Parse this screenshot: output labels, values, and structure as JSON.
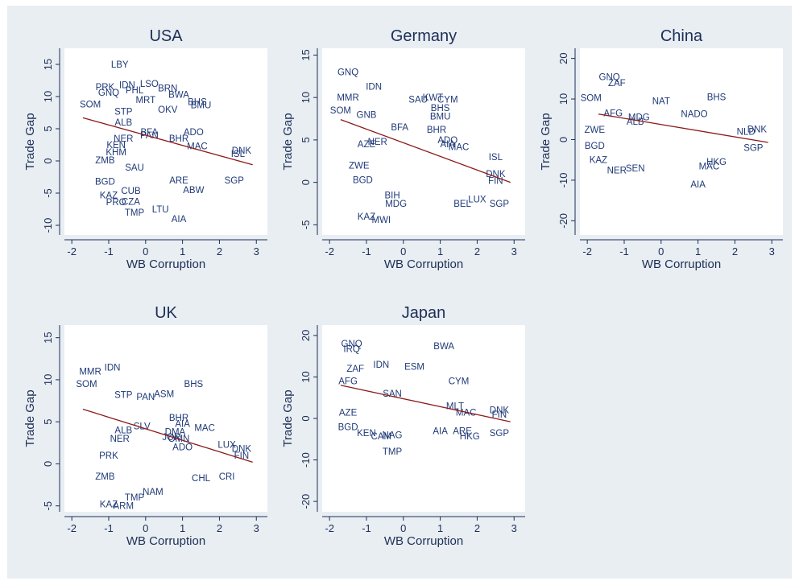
{
  "chart_data": [
    {
      "type": "scatter",
      "title": "USA",
      "xlabel": "WB Corruption",
      "ylabel": "Trade Gap",
      "xlim": [
        -2.2,
        3.3
      ],
      "ylim": [
        -11.5,
        17.5
      ],
      "xticks": [
        "-2",
        "-1",
        "0",
        "1",
        "2",
        "3"
      ],
      "xtick_values": [
        -2,
        -1,
        0,
        1,
        2,
        3
      ],
      "yticks": [
        "-10",
        "-5",
        "0",
        "5",
        "10",
        "15"
      ],
      "ytick_values": [
        -10,
        -5,
        0,
        5,
        10,
        15
      ],
      "fit_line": {
        "x": [
          -1.7,
          2.9
        ],
        "y": [
          6.7,
          -0.6
        ]
      },
      "points": [
        {
          "label": "LBY",
          "x": -0.7,
          "y": 15.0
        },
        {
          "label": "IDN",
          "x": -0.5,
          "y": 11.8
        },
        {
          "label": "LSO",
          "x": 0.1,
          "y": 12.0
        },
        {
          "label": "PRK",
          "x": -1.1,
          "y": 11.5
        },
        {
          "label": "BRN",
          "x": 0.6,
          "y": 11.3
        },
        {
          "label": "GNQ",
          "x": -1.0,
          "y": 10.6
        },
        {
          "label": "PHL",
          "x": -0.3,
          "y": 11.0
        },
        {
          "label": "BWA",
          "x": 0.9,
          "y": 10.3
        },
        {
          "label": "SOM",
          "x": -1.5,
          "y": 8.8
        },
        {
          "label": "STP",
          "x": -0.6,
          "y": 7.7
        },
        {
          "label": "MRT",
          "x": 0.0,
          "y": 9.5
        },
        {
          "label": "BHS",
          "x": 1.4,
          "y": 9.2
        },
        {
          "label": "BMU",
          "x": 1.5,
          "y": 8.7
        },
        {
          "label": "OKV",
          "x": 0.6,
          "y": 8.0
        },
        {
          "label": "ALB",
          "x": -0.6,
          "y": 6.0
        },
        {
          "label": "BFA",
          "x": 0.1,
          "y": 4.5
        },
        {
          "label": "PAN",
          "x": 0.1,
          "y": 4.0
        },
        {
          "label": "ADO",
          "x": 1.3,
          "y": 4.5
        },
        {
          "label": "BHR",
          "x": 0.9,
          "y": 3.5
        },
        {
          "label": "MAC",
          "x": 1.4,
          "y": 2.3
        },
        {
          "label": "NER",
          "x": -0.6,
          "y": 3.5
        },
        {
          "label": "KEN",
          "x": -0.8,
          "y": 2.5
        },
        {
          "label": "KHM",
          "x": -0.8,
          "y": 1.4
        },
        {
          "label": "DNK",
          "x": 2.6,
          "y": 1.6
        },
        {
          "label": "ISL",
          "x": 2.5,
          "y": 1.1
        },
        {
          "label": "ZMB",
          "x": -1.1,
          "y": 0.1
        },
        {
          "label": "BGD",
          "x": -1.1,
          "y": -3.2
        },
        {
          "label": "SAU",
          "x": -0.3,
          "y": -1.0
        },
        {
          "label": "ARE",
          "x": 0.9,
          "y": -3.0
        },
        {
          "label": "SGP",
          "x": 2.4,
          "y": -3.0
        },
        {
          "label": "ABW",
          "x": 1.3,
          "y": -4.5
        },
        {
          "label": "KAZ",
          "x": -1.0,
          "y": -5.3
        },
        {
          "label": "PRO",
          "x": -0.8,
          "y": -6.4
        },
        {
          "label": "CZA",
          "x": -0.4,
          "y": -6.3
        },
        {
          "label": "TMP",
          "x": -0.3,
          "y": -8.0
        },
        {
          "label": "LTU",
          "x": 0.4,
          "y": -7.5
        },
        {
          "label": "AIA",
          "x": 0.9,
          "y": -9.0
        },
        {
          "label": "CUB",
          "x": -0.4,
          "y": -4.6
        }
      ]
    },
    {
      "type": "scatter",
      "title": "Germany",
      "xlabel": "WB Corruption",
      "ylabel": "Trade Gap",
      "xlim": [
        -2.2,
        3.3
      ],
      "ylim": [
        -6.2,
        15.8
      ],
      "xticks": [
        "-2",
        "-1",
        "0",
        "1",
        "2",
        "3"
      ],
      "xtick_values": [
        -2,
        -1,
        0,
        1,
        2,
        3
      ],
      "yticks": [
        "-5",
        "0",
        "5",
        "10",
        "15"
      ],
      "ytick_values": [
        -5,
        0,
        5,
        10,
        15
      ],
      "fit_line": {
        "x": [
          -1.7,
          2.9
        ],
        "y": [
          7.4,
          0.0
        ]
      },
      "points": [
        {
          "label": "GNQ",
          "x": -1.5,
          "y": 13.0
        },
        {
          "label": "IDN",
          "x": -0.8,
          "y": 11.3
        },
        {
          "label": "MMR",
          "x": -1.5,
          "y": 10.0
        },
        {
          "label": "SOM",
          "x": -1.7,
          "y": 8.5
        },
        {
          "label": "SAU",
          "x": 0.4,
          "y": 9.8
        },
        {
          "label": "KWT",
          "x": 0.8,
          "y": 10.0
        },
        {
          "label": "CYM",
          "x": 1.2,
          "y": 9.8
        },
        {
          "label": "BHS",
          "x": 1.0,
          "y": 8.8
        },
        {
          "label": "BMU",
          "x": 1.0,
          "y": 7.8
        },
        {
          "label": "BFA",
          "x": -0.1,
          "y": 6.5
        },
        {
          "label": "BHR",
          "x": 0.9,
          "y": 6.2
        },
        {
          "label": "GNB",
          "x": -1.0,
          "y": 8.0
        },
        {
          "label": "ADO",
          "x": 1.2,
          "y": 5.0
        },
        {
          "label": "AIA",
          "x": 1.2,
          "y": 4.5
        },
        {
          "label": "MAC",
          "x": 1.5,
          "y": 4.2
        },
        {
          "label": "ISL",
          "x": 2.5,
          "y": 3.0
        },
        {
          "label": "NER",
          "x": -0.7,
          "y": 4.8
        },
        {
          "label": "AZE",
          "x": -1.0,
          "y": 4.5
        },
        {
          "label": "ZWE",
          "x": -1.2,
          "y": 2.0
        },
        {
          "label": "DNK",
          "x": 2.5,
          "y": 1.0
        },
        {
          "label": "FIN",
          "x": 2.5,
          "y": 0.2
        },
        {
          "label": "BEL",
          "x": 1.6,
          "y": -2.5
        },
        {
          "label": "LUX",
          "x": 2.0,
          "y": -2.0
        },
        {
          "label": "SGP",
          "x": 2.6,
          "y": -2.5
        },
        {
          "label": "MDG",
          "x": -0.2,
          "y": -2.5
        },
        {
          "label": "BGD",
          "x": -1.1,
          "y": 0.3
        },
        {
          "label": "KAZ",
          "x": -1.0,
          "y": -4.0
        },
        {
          "label": "MWI",
          "x": -0.6,
          "y": -4.4
        },
        {
          "label": "BIH",
          "x": -0.3,
          "y": -1.5
        }
      ]
    },
    {
      "type": "scatter",
      "title": "China",
      "xlabel": "WB Corruption",
      "ylabel": "Trade Gap",
      "xlim": [
        -2.2,
        3.3
      ],
      "ylim": [
        -23.5,
        22.5
      ],
      "xticks": [
        "-2",
        "-1",
        "0",
        "1",
        "2",
        "3"
      ],
      "xtick_values": [
        -2,
        -1,
        0,
        1,
        2,
        3
      ],
      "yticks": [
        "-20",
        "-10",
        "0",
        "10",
        "20"
      ],
      "ytick_values": [
        -20,
        -10,
        0,
        10,
        20
      ],
      "fit_line": {
        "x": [
          -1.7,
          2.9
        ],
        "y": [
          6.3,
          -0.7
        ]
      },
      "points": [
        {
          "label": "GNQ",
          "x": -1.4,
          "y": 15.5
        },
        {
          "label": "ZAF",
          "x": -1.2,
          "y": 14.0
        },
        {
          "label": "SOM",
          "x": -1.9,
          "y": 10.3
        },
        {
          "label": "NAT",
          "x": 0.0,
          "y": 9.5
        },
        {
          "label": "BHS",
          "x": 1.5,
          "y": 10.5
        },
        {
          "label": "AFG",
          "x": -1.3,
          "y": 6.5
        },
        {
          "label": "MDG",
          "x": -0.6,
          "y": 5.5
        },
        {
          "label": "NADO",
          "x": 0.9,
          "y": 6.3
        },
        {
          "label": "ALB",
          "x": -0.7,
          "y": 4.5
        },
        {
          "label": "ZWE",
          "x": -1.8,
          "y": 2.5
        },
        {
          "label": "DNK",
          "x": 2.6,
          "y": 2.6
        },
        {
          "label": "NLD",
          "x": 2.3,
          "y": 2.0
        },
        {
          "label": "SGP",
          "x": 2.5,
          "y": -2.0
        },
        {
          "label": "HKG",
          "x": 1.5,
          "y": -5.5
        },
        {
          "label": "MAC",
          "x": 1.3,
          "y": -6.5
        },
        {
          "label": "NER",
          "x": -1.2,
          "y": -7.5
        },
        {
          "label": "SEN",
          "x": -0.7,
          "y": -7.0
        },
        {
          "label": "AIA",
          "x": 1.0,
          "y": -11.0
        },
        {
          "label": "BGD",
          "x": -1.8,
          "y": -1.5
        },
        {
          "label": "KAZ",
          "x": -1.7,
          "y": -5.0
        }
      ]
    },
    {
      "type": "scatter",
      "title": "UK",
      "xlabel": "WB Corruption",
      "ylabel": "Trade Gap",
      "xlim": [
        -2.2,
        3.3
      ],
      "ylim": [
        -5.7,
        16.5
      ],
      "xticks": [
        "-2",
        "-1",
        "0",
        "1",
        "2",
        "3"
      ],
      "xtick_values": [
        -2,
        -1,
        0,
        1,
        2,
        3
      ],
      "yticks": [
        "-5",
        "0",
        "5",
        "10",
        "15"
      ],
      "ytick_values": [
        -5,
        0,
        5,
        10,
        15
      ],
      "fit_line": {
        "x": [
          -1.7,
          2.9
        ],
        "y": [
          6.5,
          0.2
        ]
      },
      "points": [
        {
          "label": "IDN",
          "x": -0.9,
          "y": 11.5
        },
        {
          "label": "MMR",
          "x": -1.5,
          "y": 11.0
        },
        {
          "label": "SOM",
          "x": -1.6,
          "y": 9.5
        },
        {
          "label": "STP",
          "x": -0.6,
          "y": 8.2
        },
        {
          "label": "PAN",
          "x": 0.0,
          "y": 8.0
        },
        {
          "label": "ASM",
          "x": 0.5,
          "y": 8.3
        },
        {
          "label": "BHS",
          "x": 1.3,
          "y": 9.5
        },
        {
          "label": "BHR",
          "x": 0.9,
          "y": 5.5
        },
        {
          "label": "AIA",
          "x": 1.0,
          "y": 4.8
        },
        {
          "label": "SLV",
          "x": -0.1,
          "y": 4.5
        },
        {
          "label": "DMA",
          "x": 0.8,
          "y": 3.8
        },
        {
          "label": "MAC",
          "x": 1.6,
          "y": 4.3
        },
        {
          "label": "ALB",
          "x": -0.6,
          "y": 4.0
        },
        {
          "label": "NER",
          "x": -0.7,
          "y": 3.0
        },
        {
          "label": "JOR",
          "x": 0.7,
          "y": 3.2
        },
        {
          "label": "OMN",
          "x": 0.9,
          "y": 3.0
        },
        {
          "label": "LUX",
          "x": 2.2,
          "y": 2.3
        },
        {
          "label": "DNK",
          "x": 2.6,
          "y": 1.8
        },
        {
          "label": "FIN",
          "x": 2.6,
          "y": 1.0
        },
        {
          "label": "PRK",
          "x": -1.0,
          "y": 1.0
        },
        {
          "label": "ADO",
          "x": 1.0,
          "y": 2.0
        },
        {
          "label": "CHL",
          "x": 1.5,
          "y": -1.7
        },
        {
          "label": "CRI",
          "x": 2.2,
          "y": -1.5
        },
        {
          "label": "ZMB",
          "x": -1.1,
          "y": -1.5
        },
        {
          "label": "TMP",
          "x": -0.3,
          "y": -4.0
        },
        {
          "label": "KAZ",
          "x": -1.0,
          "y": -4.8
        },
        {
          "label": "ARM",
          "x": -0.6,
          "y": -5.0
        },
        {
          "label": "NAM",
          "x": 0.2,
          "y": -3.3
        }
      ]
    },
    {
      "type": "scatter",
      "title": "Japan",
      "xlabel": "WB Corruption",
      "ylabel": "Trade Gap",
      "xlim": [
        -2.2,
        3.3
      ],
      "ylim": [
        -22.5,
        22.5
      ],
      "xticks": [
        "-2",
        "-1",
        "0",
        "1",
        "2",
        "3"
      ],
      "xtick_values": [
        -2,
        -1,
        0,
        1,
        2,
        3
      ],
      "yticks": [
        "-20",
        "-10",
        "0",
        "10",
        "20"
      ],
      "ytick_values": [
        -20,
        -10,
        0,
        10,
        20
      ],
      "fit_line": {
        "x": [
          -1.7,
          2.9
        ],
        "y": [
          8.0,
          -0.8
        ]
      },
      "points": [
        {
          "label": "GNQ",
          "x": -1.4,
          "y": 18.0
        },
        {
          "label": "IRQ",
          "x": -1.4,
          "y": 16.8
        },
        {
          "label": "BWA",
          "x": 1.1,
          "y": 17.5
        },
        {
          "label": "IDN",
          "x": -0.6,
          "y": 13.0
        },
        {
          "label": "ESM",
          "x": 0.3,
          "y": 12.5
        },
        {
          "label": "ZAF",
          "x": -1.3,
          "y": 12.0
        },
        {
          "label": "CYM",
          "x": 1.5,
          "y": 9.0
        },
        {
          "label": "AFG",
          "x": -1.5,
          "y": 9.0
        },
        {
          "label": "SAN",
          "x": -0.3,
          "y": 6.0
        },
        {
          "label": "MLT",
          "x": 1.4,
          "y": 3.0
        },
        {
          "label": "DNK",
          "x": 2.6,
          "y": 2.0
        },
        {
          "label": "FIN",
          "x": 2.6,
          "y": 1.0
        },
        {
          "label": "MAC",
          "x": 1.7,
          "y": 1.5
        },
        {
          "label": "AZE",
          "x": -1.5,
          "y": 1.5
        },
        {
          "label": "BGD",
          "x": -1.5,
          "y": -2.0
        },
        {
          "label": "KEN",
          "x": -1.0,
          "y": -3.5
        },
        {
          "label": "AIA",
          "x": 1.0,
          "y": -3.0
        },
        {
          "label": "ARE",
          "x": 1.6,
          "y": -3.0
        },
        {
          "label": "HKG",
          "x": 1.8,
          "y": -4.3
        },
        {
          "label": "SGP",
          "x": 2.6,
          "y": -3.5
        },
        {
          "label": "TMP",
          "x": -0.3,
          "y": -8.0
        },
        {
          "label": "NAG",
          "x": -0.3,
          "y": -4.0
        },
        {
          "label": "CAM",
          "x": -0.6,
          "y": -4.3
        }
      ]
    }
  ]
}
